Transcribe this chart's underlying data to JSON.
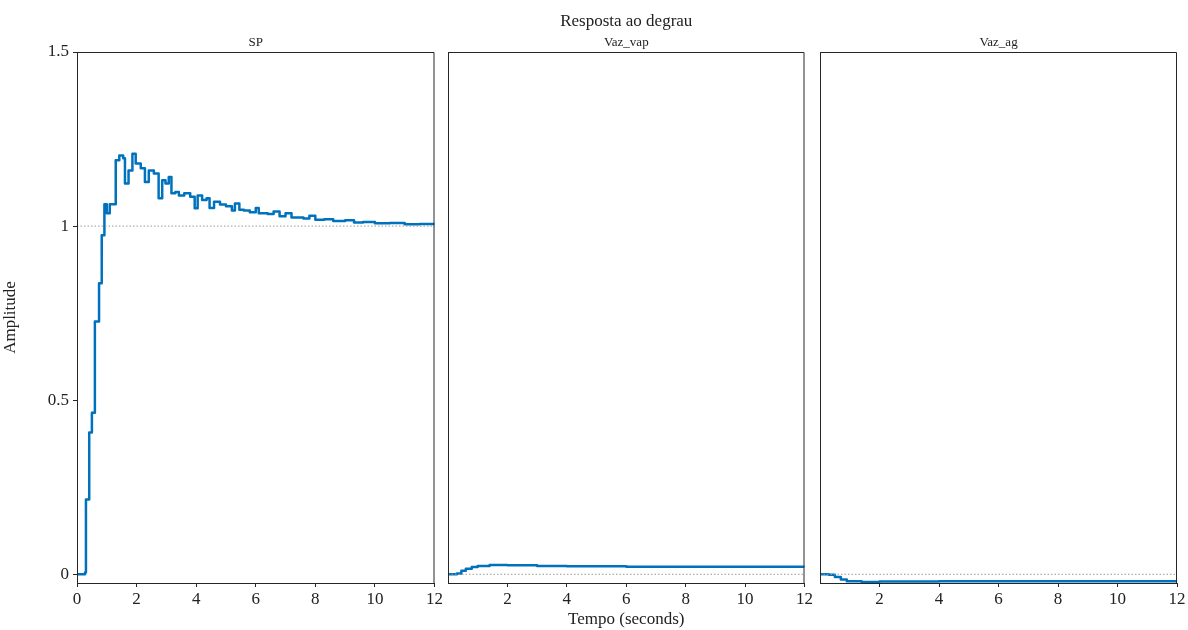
{
  "chart_data": [
    {
      "type": "step",
      "title": "SP",
      "ylabel": "Amplitude",
      "xlim": [
        0,
        12
      ],
      "xticks": [
        0,
        2,
        4,
        6,
        8,
        10,
        12
      ],
      "ylim": [
        -0.025,
        1.5
      ],
      "yticks": [
        0,
        0.5,
        1,
        1.5
      ],
      "grid": false,
      "legend": false,
      "ref_lines": [
        {
          "axis": "y",
          "value": 1,
          "color": "#999999",
          "line_style": "dotted"
        }
      ],
      "series": [
        {
          "color": "#0072bd",
          "x": [
            0,
            0.27,
            0.3,
            0.41,
            0.5,
            0.6,
            0.74,
            0.83,
            0.92,
            1.0,
            1.1,
            1.3,
            1.42,
            1.55,
            1.61,
            1.73,
            1.86,
            1.97,
            2.14,
            2.28,
            2.41,
            2.58,
            2.74,
            2.86,
            2.97,
            3.08,
            3.17,
            3.3,
            3.42,
            3.6,
            3.8,
            3.95,
            4.05,
            4.2,
            4.35,
            4.45,
            4.6,
            4.8,
            5.0,
            5.2,
            5.3,
            5.45,
            5.6,
            5.8,
            6.0,
            6.1,
            6.4,
            6.6,
            6.8,
            7.0,
            7.2,
            7.6,
            7.8,
            8.0,
            8.3,
            8.6,
            9.0,
            9.3,
            9.6,
            10.0,
            10.5,
            11.0,
            11.5,
            12
          ],
          "values": [
            0,
            0.005,
            0.215,
            0.407,
            0.464,
            0.726,
            0.836,
            0.974,
            1.063,
            1.037,
            1.063,
            1.189,
            1.203,
            1.195,
            1.122,
            1.16,
            1.208,
            1.18,
            1.166,
            1.127,
            1.16,
            1.151,
            1.08,
            1.132,
            1.122,
            1.141,
            1.094,
            1.098,
            1.088,
            1.094,
            1.084,
            1.051,
            1.088,
            1.075,
            1.08,
            1.052,
            1.07,
            1.062,
            1.057,
            1.045,
            1.065,
            1.047,
            1.045,
            1.04,
            1.052,
            1.037,
            1.035,
            1.042,
            1.028,
            1.037,
            1.025,
            1.022,
            1.03,
            1.018,
            1.02,
            1.015,
            1.017,
            1.01,
            1.012,
            1.008,
            1.009,
            1.005,
            1.006,
            1.004
          ]
        }
      ]
    },
    {
      "type": "step",
      "title": "Vaz_vap",
      "xlabel": "Tempo (seconds)",
      "annotations": [
        "Resposta ao degrau"
      ],
      "xlim": [
        0,
        12
      ],
      "xticks": [
        2,
        4,
        6,
        8,
        10,
        12
      ],
      "ylim": [
        -0.025,
        1.5
      ],
      "yticks": [
        0,
        0.5,
        1,
        1.5
      ],
      "tick_labels": "x",
      "grid": false,
      "legend": false,
      "ref_lines": [
        {
          "axis": "y",
          "value": 0,
          "color": "#999999",
          "line_style": "dotted"
        }
      ],
      "series": [
        {
          "color": "#0072bd",
          "x": [
            0,
            0.3,
            0.45,
            0.6,
            0.8,
            1.0,
            1.4,
            2.0,
            3.0,
            4,
            6,
            8,
            12
          ],
          "values": [
            0,
            0.002,
            0.01,
            0.016,
            0.021,
            0.024,
            0.027,
            0.026,
            0.024,
            0.023,
            0.022,
            0.022,
            0.021
          ]
        }
      ]
    },
    {
      "type": "step",
      "title": "Vaz_ag",
      "xlim": [
        0,
        12
      ],
      "xticks": [
        2,
        4,
        6,
        8,
        10,
        12
      ],
      "ylim": [
        -0.025,
        1.5
      ],
      "yticks": [
        0,
        0.5,
        1,
        1.5
      ],
      "tick_labels": "x",
      "grid": false,
      "legend": false,
      "ref_lines": [
        {
          "axis": "y",
          "value": 0,
          "color": "#999999",
          "line_style": "dotted"
        }
      ],
      "series": [
        {
          "color": "#0072bd",
          "x": [
            0,
            0.3,
            0.5,
            0.7,
            0.9,
            1.4,
            2,
            4,
            8,
            12
          ],
          "values": [
            0,
            -0.001,
            -0.008,
            -0.015,
            -0.02,
            -0.022,
            -0.021,
            -0.02,
            -0.02,
            -0.02
          ]
        }
      ]
    }
  ]
}
